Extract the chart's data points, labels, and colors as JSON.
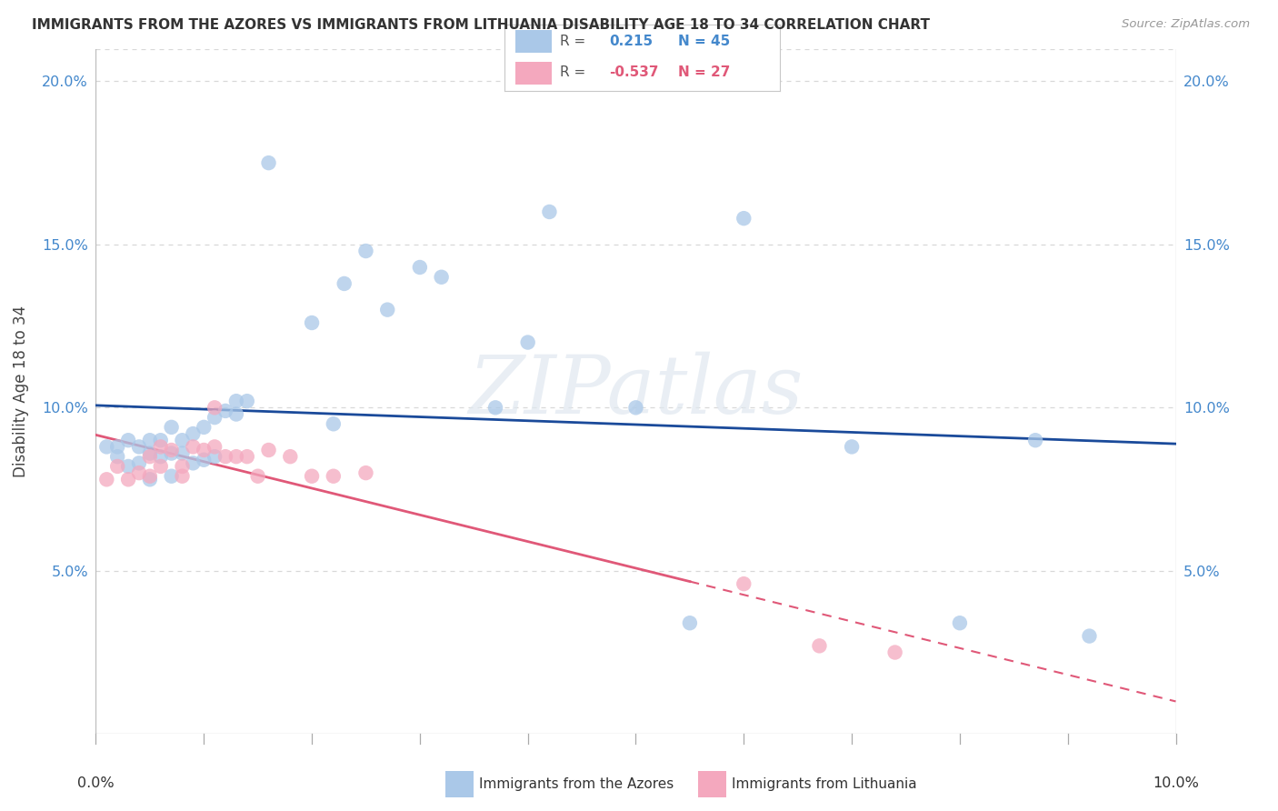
{
  "title": "IMMIGRANTS FROM THE AZORES VS IMMIGRANTS FROM LITHUANIA DISABILITY AGE 18 TO 34 CORRELATION CHART",
  "source": "Source: ZipAtlas.com",
  "ylabel": "Disability Age 18 to 34",
  "ytick_values": [
    0.0,
    0.05,
    0.1,
    0.15,
    0.2
  ],
  "ytick_labels": [
    "",
    "5.0%",
    "10.0%",
    "15.0%",
    "20.0%"
  ],
  "xlim": [
    0.0,
    0.1
  ],
  "ylim": [
    0.0,
    0.21
  ],
  "watermark": "ZIPatlas",
  "azores_R": "0.215",
  "azores_N": "45",
  "lithuania_R": "-0.537",
  "lithuania_N": "27",
  "azores_color": "#aac8e8",
  "azores_line_color": "#1a4a9a",
  "lithuania_color": "#f4a8be",
  "lithuania_line_color": "#e05878",
  "legend_border": "#c8c8c8",
  "grid_color": "#d8d8d8",
  "axis_color": "#bbbbbb",
  "tick_color": "#4488cc",
  "background": "#ffffff",
  "azores_x": [
    0.001,
    0.002,
    0.002,
    0.003,
    0.003,
    0.004,
    0.004,
    0.005,
    0.005,
    0.005,
    0.006,
    0.006,
    0.007,
    0.007,
    0.007,
    0.008,
    0.008,
    0.009,
    0.009,
    0.01,
    0.01,
    0.011,
    0.011,
    0.012,
    0.013,
    0.013,
    0.014,
    0.016,
    0.02,
    0.022,
    0.023,
    0.025,
    0.027,
    0.03,
    0.032,
    0.037,
    0.04,
    0.042,
    0.05,
    0.055,
    0.06,
    0.07,
    0.08,
    0.087,
    0.092
  ],
  "azores_y": [
    0.088,
    0.088,
    0.085,
    0.09,
    0.082,
    0.088,
    0.083,
    0.09,
    0.086,
    0.078,
    0.09,
    0.085,
    0.094,
    0.086,
    0.079,
    0.09,
    0.086,
    0.092,
    0.083,
    0.094,
    0.084,
    0.097,
    0.085,
    0.099,
    0.102,
    0.098,
    0.102,
    0.175,
    0.126,
    0.095,
    0.138,
    0.148,
    0.13,
    0.143,
    0.14,
    0.1,
    0.12,
    0.16,
    0.1,
    0.034,
    0.158,
    0.088,
    0.034,
    0.09,
    0.03
  ],
  "lithuania_x": [
    0.001,
    0.002,
    0.003,
    0.004,
    0.005,
    0.005,
    0.006,
    0.006,
    0.007,
    0.008,
    0.008,
    0.009,
    0.01,
    0.011,
    0.011,
    0.012,
    0.013,
    0.014,
    0.015,
    0.016,
    0.018,
    0.02,
    0.022,
    0.025,
    0.06,
    0.067,
    0.074
  ],
  "lithuania_y": [
    0.078,
    0.082,
    0.078,
    0.08,
    0.085,
    0.079,
    0.088,
    0.082,
    0.087,
    0.082,
    0.079,
    0.088,
    0.087,
    0.1,
    0.088,
    0.085,
    0.085,
    0.085,
    0.079,
    0.087,
    0.085,
    0.079,
    0.079,
    0.08,
    0.046,
    0.027,
    0.025
  ]
}
